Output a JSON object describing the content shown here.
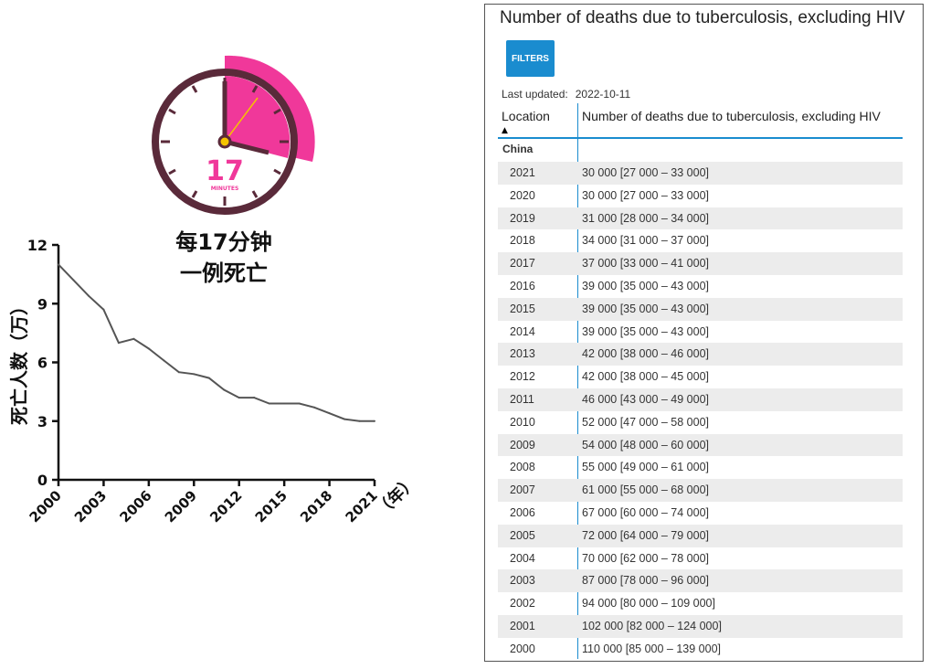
{
  "clock": {
    "number": "17",
    "unit": "MINUTES",
    "caption_line1": "每17分钟",
    "caption_line2": "一例死亡",
    "colors": {
      "accent": "#f0389a",
      "frame": "#5a2a3a",
      "face": "#ffffff"
    }
  },
  "chart_data": {
    "type": "line",
    "ylabel": "死亡人数（万）",
    "xunit": "（年）",
    "x": [
      2000,
      2001,
      2002,
      2003,
      2004,
      2005,
      2006,
      2007,
      2008,
      2009,
      2010,
      2011,
      2012,
      2013,
      2014,
      2015,
      2016,
      2017,
      2018,
      2019,
      2020,
      2021
    ],
    "values": [
      11.0,
      10.2,
      9.4,
      8.7,
      7.0,
      7.2,
      6.7,
      6.1,
      5.5,
      5.4,
      5.2,
      4.6,
      4.2,
      4.2,
      3.9,
      3.9,
      3.9,
      3.7,
      3.4,
      3.1,
      3.0,
      3.0
    ],
    "xticks": [
      "2000",
      "2003",
      "2006",
      "2009",
      "2012",
      "2015",
      "2018",
      "2021"
    ],
    "yticks": [
      "0",
      "3",
      "6",
      "9",
      "12"
    ],
    "ylim": [
      0,
      12
    ],
    "xlim": [
      2000,
      2021
    ],
    "line_color": "#555555"
  },
  "panel": {
    "title": "Number of deaths due to tuberculosis, excluding HIV",
    "filters_label": "FILTERS",
    "last_updated_label": "Last updated:",
    "last_updated_value": "2022-10-11",
    "col_location": "Location",
    "col_value": "Number of deaths due to tuberculosis, excluding HIV",
    "sort_indicator": "▲",
    "group": "China",
    "accent": "#1a8ccf",
    "rows": [
      {
        "year": "2021",
        "value": "30 000 [27 000 – 33 000]"
      },
      {
        "year": "2020",
        "value": "30 000 [27 000 – 33 000]"
      },
      {
        "year": "2019",
        "value": "31 000 [28 000 – 34 000]"
      },
      {
        "year": "2018",
        "value": "34 000 [31 000 – 37 000]"
      },
      {
        "year": "2017",
        "value": "37 000 [33 000 – 41 000]"
      },
      {
        "year": "2016",
        "value": "39 000 [35 000 – 43 000]"
      },
      {
        "year": "2015",
        "value": "39 000 [35 000 – 43 000]"
      },
      {
        "year": "2014",
        "value": "39 000 [35 000 – 43 000]"
      },
      {
        "year": "2013",
        "value": "42 000 [38 000 – 46 000]"
      },
      {
        "year": "2012",
        "value": "42 000 [38 000 – 45 000]"
      },
      {
        "year": "2011",
        "value": "46 000 [43 000 – 49 000]"
      },
      {
        "year": "2010",
        "value": "52 000 [47 000 – 58 000]"
      },
      {
        "year": "2009",
        "value": "54 000 [48 000 – 60 000]"
      },
      {
        "year": "2008",
        "value": "55 000 [49 000 – 61 000]"
      },
      {
        "year": "2007",
        "value": "61 000 [55 000 – 68 000]"
      },
      {
        "year": "2006",
        "value": "67 000 [60 000 – 74 000]"
      },
      {
        "year": "2005",
        "value": "72 000 [64 000 – 79 000]"
      },
      {
        "year": "2004",
        "value": "70 000 [62 000 – 78 000]"
      },
      {
        "year": "2003",
        "value": "87 000 [78 000 – 96 000]"
      },
      {
        "year": "2002",
        "value": "94 000 [80 000 – 109 000]"
      },
      {
        "year": "2001",
        "value": "102 000 [82 000 – 124 000]"
      },
      {
        "year": "2000",
        "value": "110 000 [85 000 – 139 000]"
      }
    ]
  }
}
